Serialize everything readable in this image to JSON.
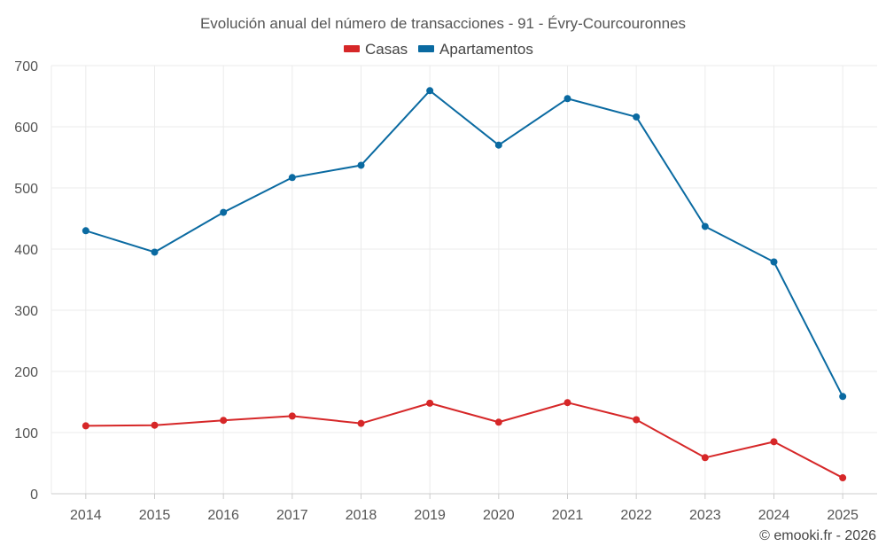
{
  "chart_data": {
    "type": "line",
    "title": "Evolución anual del número de transacciones - 91 - Évry-Courcouronnes",
    "x": [
      "2014",
      "2015",
      "2016",
      "2017",
      "2018",
      "2019",
      "2020",
      "2021",
      "2022",
      "2023",
      "2024",
      "2025"
    ],
    "series": [
      {
        "name": "Casas",
        "color": "#d62728",
        "values": [
          111,
          112,
          120,
          127,
          115,
          148,
          117,
          149,
          121,
          59,
          85,
          26
        ]
      },
      {
        "name": "Apartamentos",
        "color": "#0a6aa1",
        "values": [
          430,
          395,
          460,
          517,
          537,
          659,
          570,
          646,
          616,
          437,
          379,
          159
        ]
      }
    ],
    "ylim": [
      0,
      700
    ],
    "yticks": [
      "0",
      "100",
      "200",
      "300",
      "400",
      "500",
      "600",
      "700"
    ],
    "xlabel": "",
    "ylabel": "",
    "grid": true,
    "legend": "top-center"
  },
  "credit": "© emooki.fr - 2026"
}
